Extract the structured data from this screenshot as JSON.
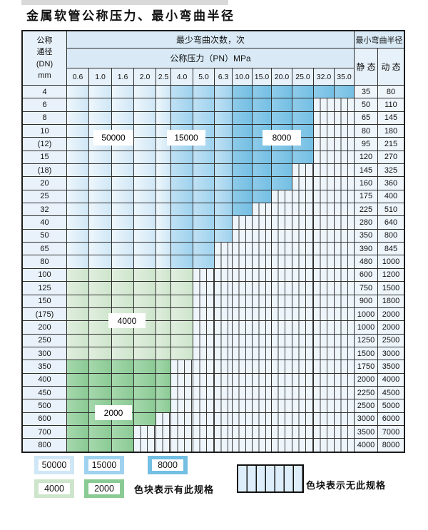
{
  "title": "金属软管公称压力、最小弯曲半径",
  "header": {
    "dn_lines": [
      "公称",
      "通径",
      "(DN)",
      "mm"
    ],
    "bend_times_label": "最少弯曲次数，次",
    "pressure_label": "公称压力（PN）MPa",
    "radius_label": "最小弯曲半径",
    "static_label": "静 态",
    "dynamic_label": "动 态",
    "pressures": [
      "0.6",
      "1.0",
      "1.6",
      "2.0",
      "2.5",
      "4.0",
      "5.0",
      "6.3",
      "10.0",
      "15.0",
      "20.0",
      "25.0",
      "32.0",
      "35.0"
    ]
  },
  "chart_data": {
    "type": "table",
    "rows": [
      {
        "dn": "4",
        "max_pn": "35.0",
        "static": "35",
        "dynamic": "80"
      },
      {
        "dn": "6",
        "max_pn": "25.0",
        "static": "50",
        "dynamic": "110"
      },
      {
        "dn": "8",
        "max_pn": "25.0",
        "static": "65",
        "dynamic": "145"
      },
      {
        "dn": "10",
        "max_pn": "25.0",
        "static": "80",
        "dynamic": "180"
      },
      {
        "dn": "(12)",
        "max_pn": "25.0",
        "static": "95",
        "dynamic": "215"
      },
      {
        "dn": "15",
        "max_pn": "25.0",
        "static": "120",
        "dynamic": "270"
      },
      {
        "dn": "(18)",
        "max_pn": "20.0",
        "static": "145",
        "dynamic": "325"
      },
      {
        "dn": "20",
        "max_pn": "20.0",
        "static": "160",
        "dynamic": "360"
      },
      {
        "dn": "25",
        "max_pn": "15.0",
        "static": "175",
        "dynamic": "400"
      },
      {
        "dn": "32",
        "max_pn": "10.0",
        "static": "225",
        "dynamic": "510"
      },
      {
        "dn": "40",
        "max_pn": "6.3",
        "static": "280",
        "dynamic": "640"
      },
      {
        "dn": "50",
        "max_pn": "6.3",
        "static": "350",
        "dynamic": "800"
      },
      {
        "dn": "65",
        "max_pn": "5.0",
        "static": "390",
        "dynamic": "845"
      },
      {
        "dn": "80",
        "max_pn": "5.0",
        "static": "480",
        "dynamic": "1000"
      },
      {
        "dn": "100",
        "max_pn": "4.0",
        "static": "600",
        "dynamic": "1200"
      },
      {
        "dn": "125",
        "max_pn": "4.0",
        "static": "750",
        "dynamic": "1500"
      },
      {
        "dn": "150",
        "max_pn": "4.0",
        "static": "900",
        "dynamic": "1800"
      },
      {
        "dn": "(175)",
        "max_pn": "4.0",
        "static": "1000",
        "dynamic": "2000"
      },
      {
        "dn": "200",
        "max_pn": "4.0",
        "static": "1000",
        "dynamic": "2000"
      },
      {
        "dn": "250",
        "max_pn": "4.0",
        "static": "1250",
        "dynamic": "2500"
      },
      {
        "dn": "300",
        "max_pn": "4.0",
        "static": "1500",
        "dynamic": "3000"
      },
      {
        "dn": "350",
        "max_pn": "2.5",
        "static": "1750",
        "dynamic": "3500"
      },
      {
        "dn": "400",
        "max_pn": "2.5",
        "static": "2000",
        "dynamic": "4000"
      },
      {
        "dn": "450",
        "max_pn": "2.5",
        "static": "2250",
        "dynamic": "4500"
      },
      {
        "dn": "500",
        "max_pn": "2.5",
        "static": "2500",
        "dynamic": "5000"
      },
      {
        "dn": "600",
        "max_pn": "2.0",
        "static": "3000",
        "dynamic": "6000"
      },
      {
        "dn": "700",
        "max_pn": "1.6",
        "static": "3500",
        "dynamic": "7000"
      },
      {
        "dn": "800",
        "max_pn": "1.6",
        "static": "4000",
        "dynamic": "8000"
      }
    ],
    "bend_times_regions": {
      "dn_4_to_80": {
        "pn_0.6_to_2.5": 50000,
        "pn_4.0_to_6.3": 15000,
        "pn_10.0_to_35.0": 8000
      },
      "dn_100_to_300": 4000,
      "dn_350_to_800": 2000
    }
  },
  "overlays": [
    {
      "text": "50000"
    },
    {
      "text": "15000"
    },
    {
      "text": "8000"
    },
    {
      "text": "4000"
    },
    {
      "text": "2000"
    }
  ],
  "legend": {
    "items": [
      {
        "label": "50000",
        "color_key": "bend_50000"
      },
      {
        "label": "15000",
        "color_key": "bend_15000"
      },
      {
        "label": "8000",
        "color_key": "bend_8000"
      },
      {
        "label": "4000",
        "color_key": "bend_4000"
      },
      {
        "label": "2000",
        "color_key": "bend_2000"
      }
    ],
    "available_note": "色块表示有此规格",
    "unavailable_note": "色块表示无此规格"
  },
  "colors": {
    "bend_50000": [
      "#eef6fc",
      "#cfe7f6"
    ],
    "bend_15000": [
      "#c0e1f4",
      "#9ed2ee"
    ],
    "bend_8000": [
      "#8fcbe9",
      "#73bfe4"
    ],
    "bend_4000": [
      "#e1eedf",
      "#cde5cb"
    ],
    "bend_2000": [
      "#a6d8ad",
      "#8aca94"
    ],
    "unavailable_bg": "#eef5fb",
    "hatch_line": "#3f3f3f",
    "header_bg": "#d9eaf6",
    "border": "#2e2e2e"
  }
}
